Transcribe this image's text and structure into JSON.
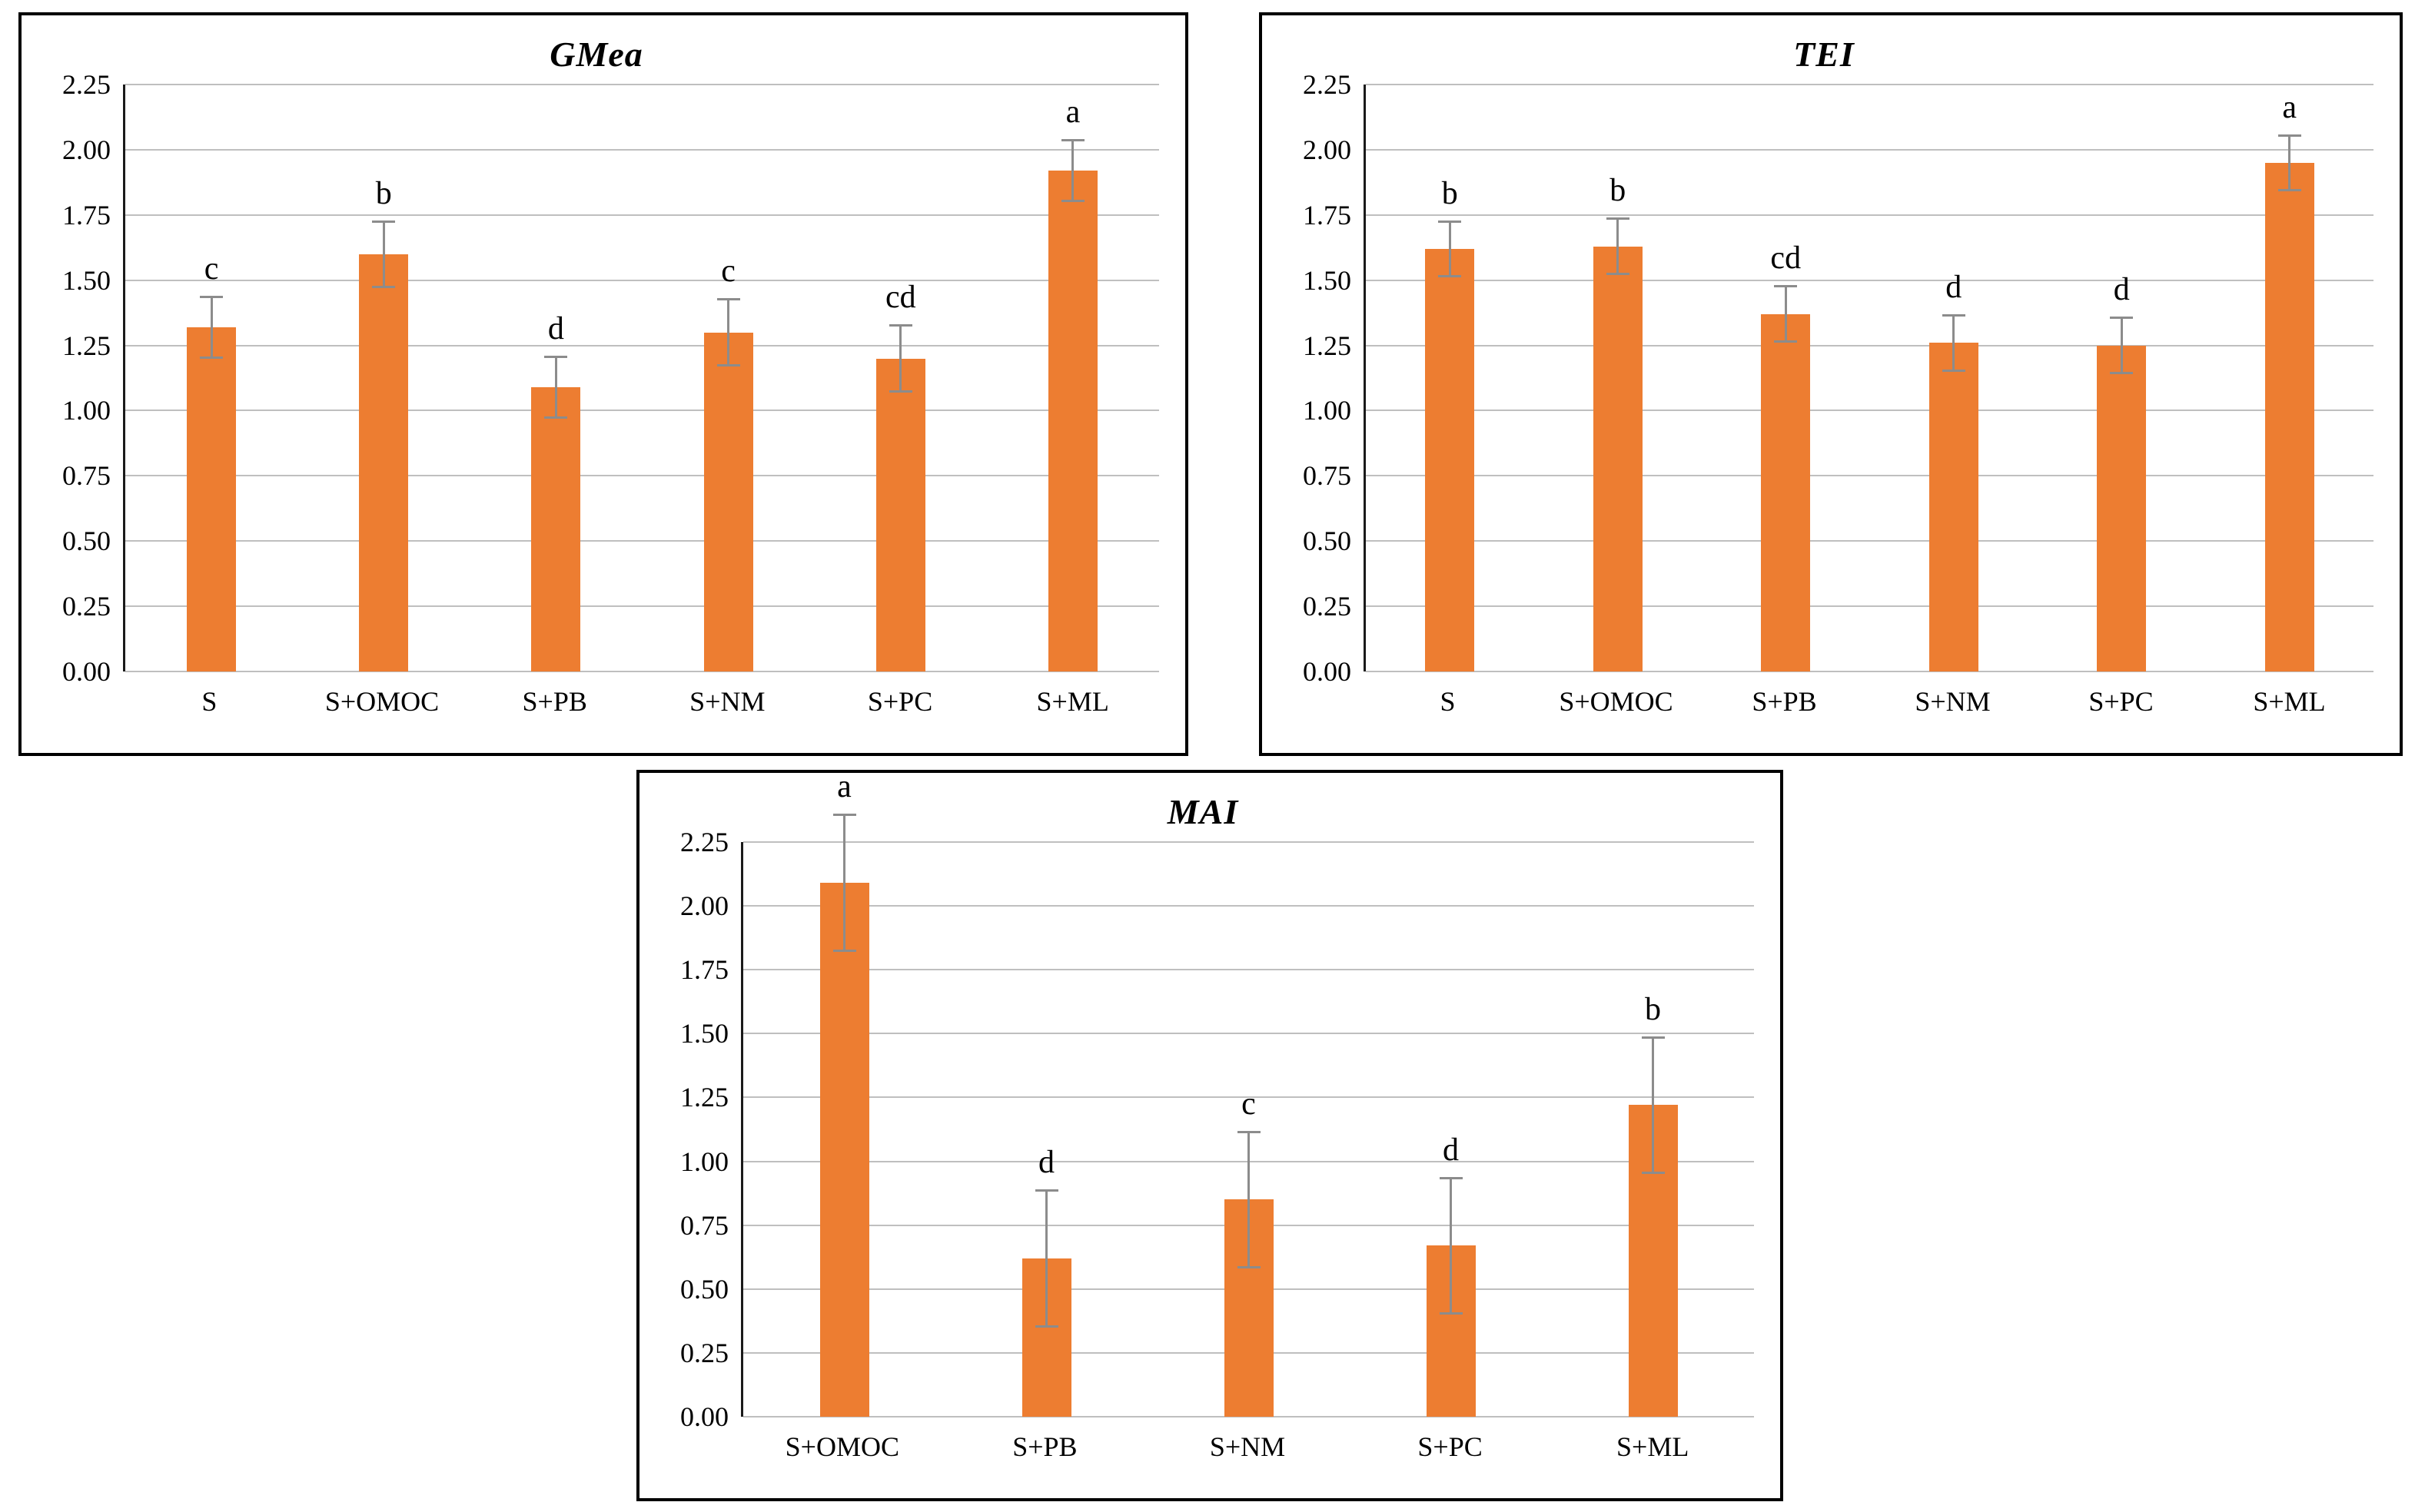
{
  "figure": {
    "description_labels": {
      "panel_1_title": "GMea",
      "panel_2_title": "TEI",
      "panel_3_title": "MAI"
    }
  },
  "colors": {
    "bar": "#ED7D31",
    "error_bar": "#8c8c8c",
    "gridline": "#bfbfbf",
    "axis_line": "#1a1a1a",
    "border": "#000000",
    "background": "#ffffff"
  },
  "chart_data": [
    {
      "type": "bar",
      "title": "GMea",
      "categories": [
        "S",
        "S+OMOC",
        "S+PB",
        "S+NM",
        "S+PC",
        "S+ML"
      ],
      "values": [
        1.32,
        1.6,
        1.09,
        1.3,
        1.2,
        1.92
      ],
      "errors": [
        0.12,
        0.13,
        0.12,
        0.13,
        0.13,
        0.12
      ],
      "sig_letters": [
        "c",
        "b",
        "d",
        "c",
        "cd",
        "a"
      ],
      "xlabel": "",
      "ylabel": "",
      "ylim": [
        0,
        2.25
      ],
      "ytick_step": 0.25,
      "grid": true,
      "legend": "none",
      "bar_color": "#ED7D31",
      "error_color": "#8c8c8c"
    },
    {
      "type": "bar",
      "title": "TEI",
      "categories": [
        "S",
        "S+OMOC",
        "S+PB",
        "S+NM",
        "S+PC",
        "S+ML"
      ],
      "values": [
        1.62,
        1.63,
        1.37,
        1.26,
        1.25,
        1.95
      ],
      "errors": [
        0.11,
        0.11,
        0.11,
        0.11,
        0.11,
        0.11
      ],
      "sig_letters": [
        "b",
        "b",
        "cd",
        "d",
        "d",
        "a"
      ],
      "xlabel": "",
      "ylabel": "",
      "ylim": [
        0,
        2.25
      ],
      "ytick_step": 0.25,
      "grid": true,
      "legend": "none",
      "bar_color": "#ED7D31",
      "error_color": "#8c8c8c"
    },
    {
      "type": "bar",
      "title": "MAI",
      "categories": [
        "S+OMOC",
        "S+PB",
        "S+NM",
        "S+PC",
        "S+ML"
      ],
      "values": [
        2.09,
        0.62,
        0.85,
        0.67,
        1.22
      ],
      "errors": [
        0.27,
        0.27,
        0.27,
        0.27,
        0.27
      ],
      "sig_letters": [
        "a",
        "d",
        "c",
        "d",
        "b"
      ],
      "xlabel": "",
      "ylabel": "",
      "ylim": [
        0,
        2.25
      ],
      "ytick_step": 0.25,
      "grid": true,
      "legend": "none",
      "bar_color": "#ED7D31",
      "error_color": "#8c8c8c"
    }
  ]
}
